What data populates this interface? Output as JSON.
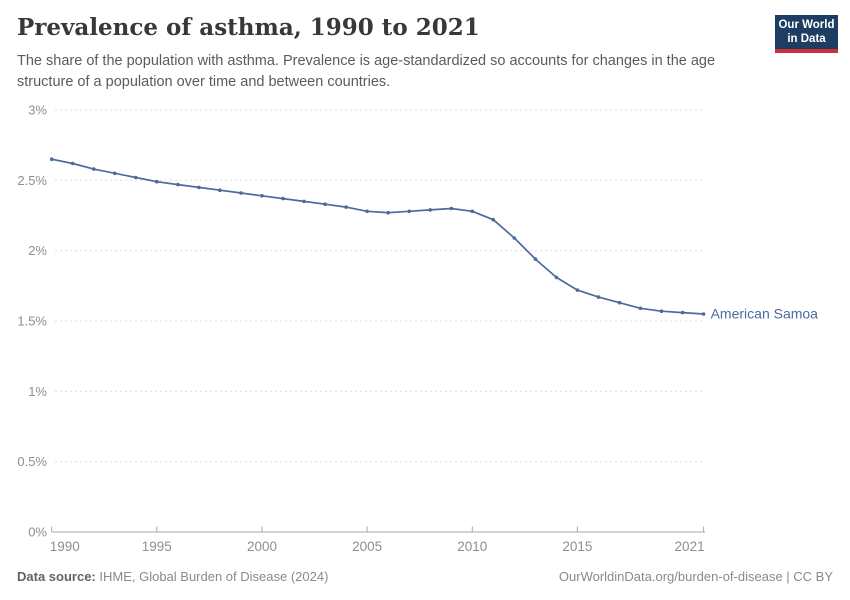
{
  "header": {
    "title": "Prevalence of asthma, 1990 to 2021",
    "subtitle": "The share of the population with asthma. Prevalence is age-standardized so accounts for changes in the age structure of a population over time and between countries.",
    "logo": {
      "line1": "Our World",
      "line2": "in Data",
      "bg_color": "#1d3d63",
      "accent_color": "#cd2d3c"
    }
  },
  "chart_data": {
    "type": "line",
    "title": "Prevalence of asthma, 1990 to 2021",
    "xlabel": "",
    "ylabel": "",
    "unit": "%",
    "xlim": [
      1990,
      2021
    ],
    "ylim": [
      0,
      3
    ],
    "grid": "horizontal-dashed",
    "legend_position": "end-of-line-label",
    "x_ticks": [
      1990,
      1995,
      2000,
      2005,
      2010,
      2015,
      2021
    ],
    "y_ticks": [
      {
        "value": 0,
        "label": "0%"
      },
      {
        "value": 0.5,
        "label": "0.5%"
      },
      {
        "value": 1,
        "label": "1%"
      },
      {
        "value": 1.5,
        "label": "1.5%"
      },
      {
        "value": 2,
        "label": "2%"
      },
      {
        "value": 2.5,
        "label": "2.5%"
      },
      {
        "value": 3,
        "label": "3%"
      }
    ],
    "series": [
      {
        "name": "American Samoa",
        "color": "#4c6a9c",
        "x": [
          1990,
          1991,
          1992,
          1993,
          1994,
          1995,
          1996,
          1997,
          1998,
          1999,
          2000,
          2001,
          2002,
          2003,
          2004,
          2005,
          2006,
          2007,
          2008,
          2009,
          2010,
          2011,
          2012,
          2013,
          2014,
          2015,
          2016,
          2017,
          2018,
          2019,
          2020,
          2021
        ],
        "values": [
          2.65,
          2.62,
          2.58,
          2.55,
          2.52,
          2.49,
          2.47,
          2.45,
          2.43,
          2.41,
          2.39,
          2.37,
          2.35,
          2.33,
          2.31,
          2.28,
          2.27,
          2.28,
          2.29,
          2.3,
          2.28,
          2.22,
          2.09,
          1.94,
          1.81,
          1.72,
          1.67,
          1.63,
          1.59,
          1.57,
          1.56,
          1.55
        ]
      }
    ],
    "style": {
      "gridline_color": "#dcdcdc",
      "axis_color": "#a8a8a8",
      "tick_label_color": "#8f8f8f"
    }
  },
  "footer": {
    "datasource_label": "Data source:",
    "datasource_value": " IHME, Global Burden of Disease (2024)",
    "note_right": "OurWorldinData.org/burden-of-disease | CC BY"
  }
}
